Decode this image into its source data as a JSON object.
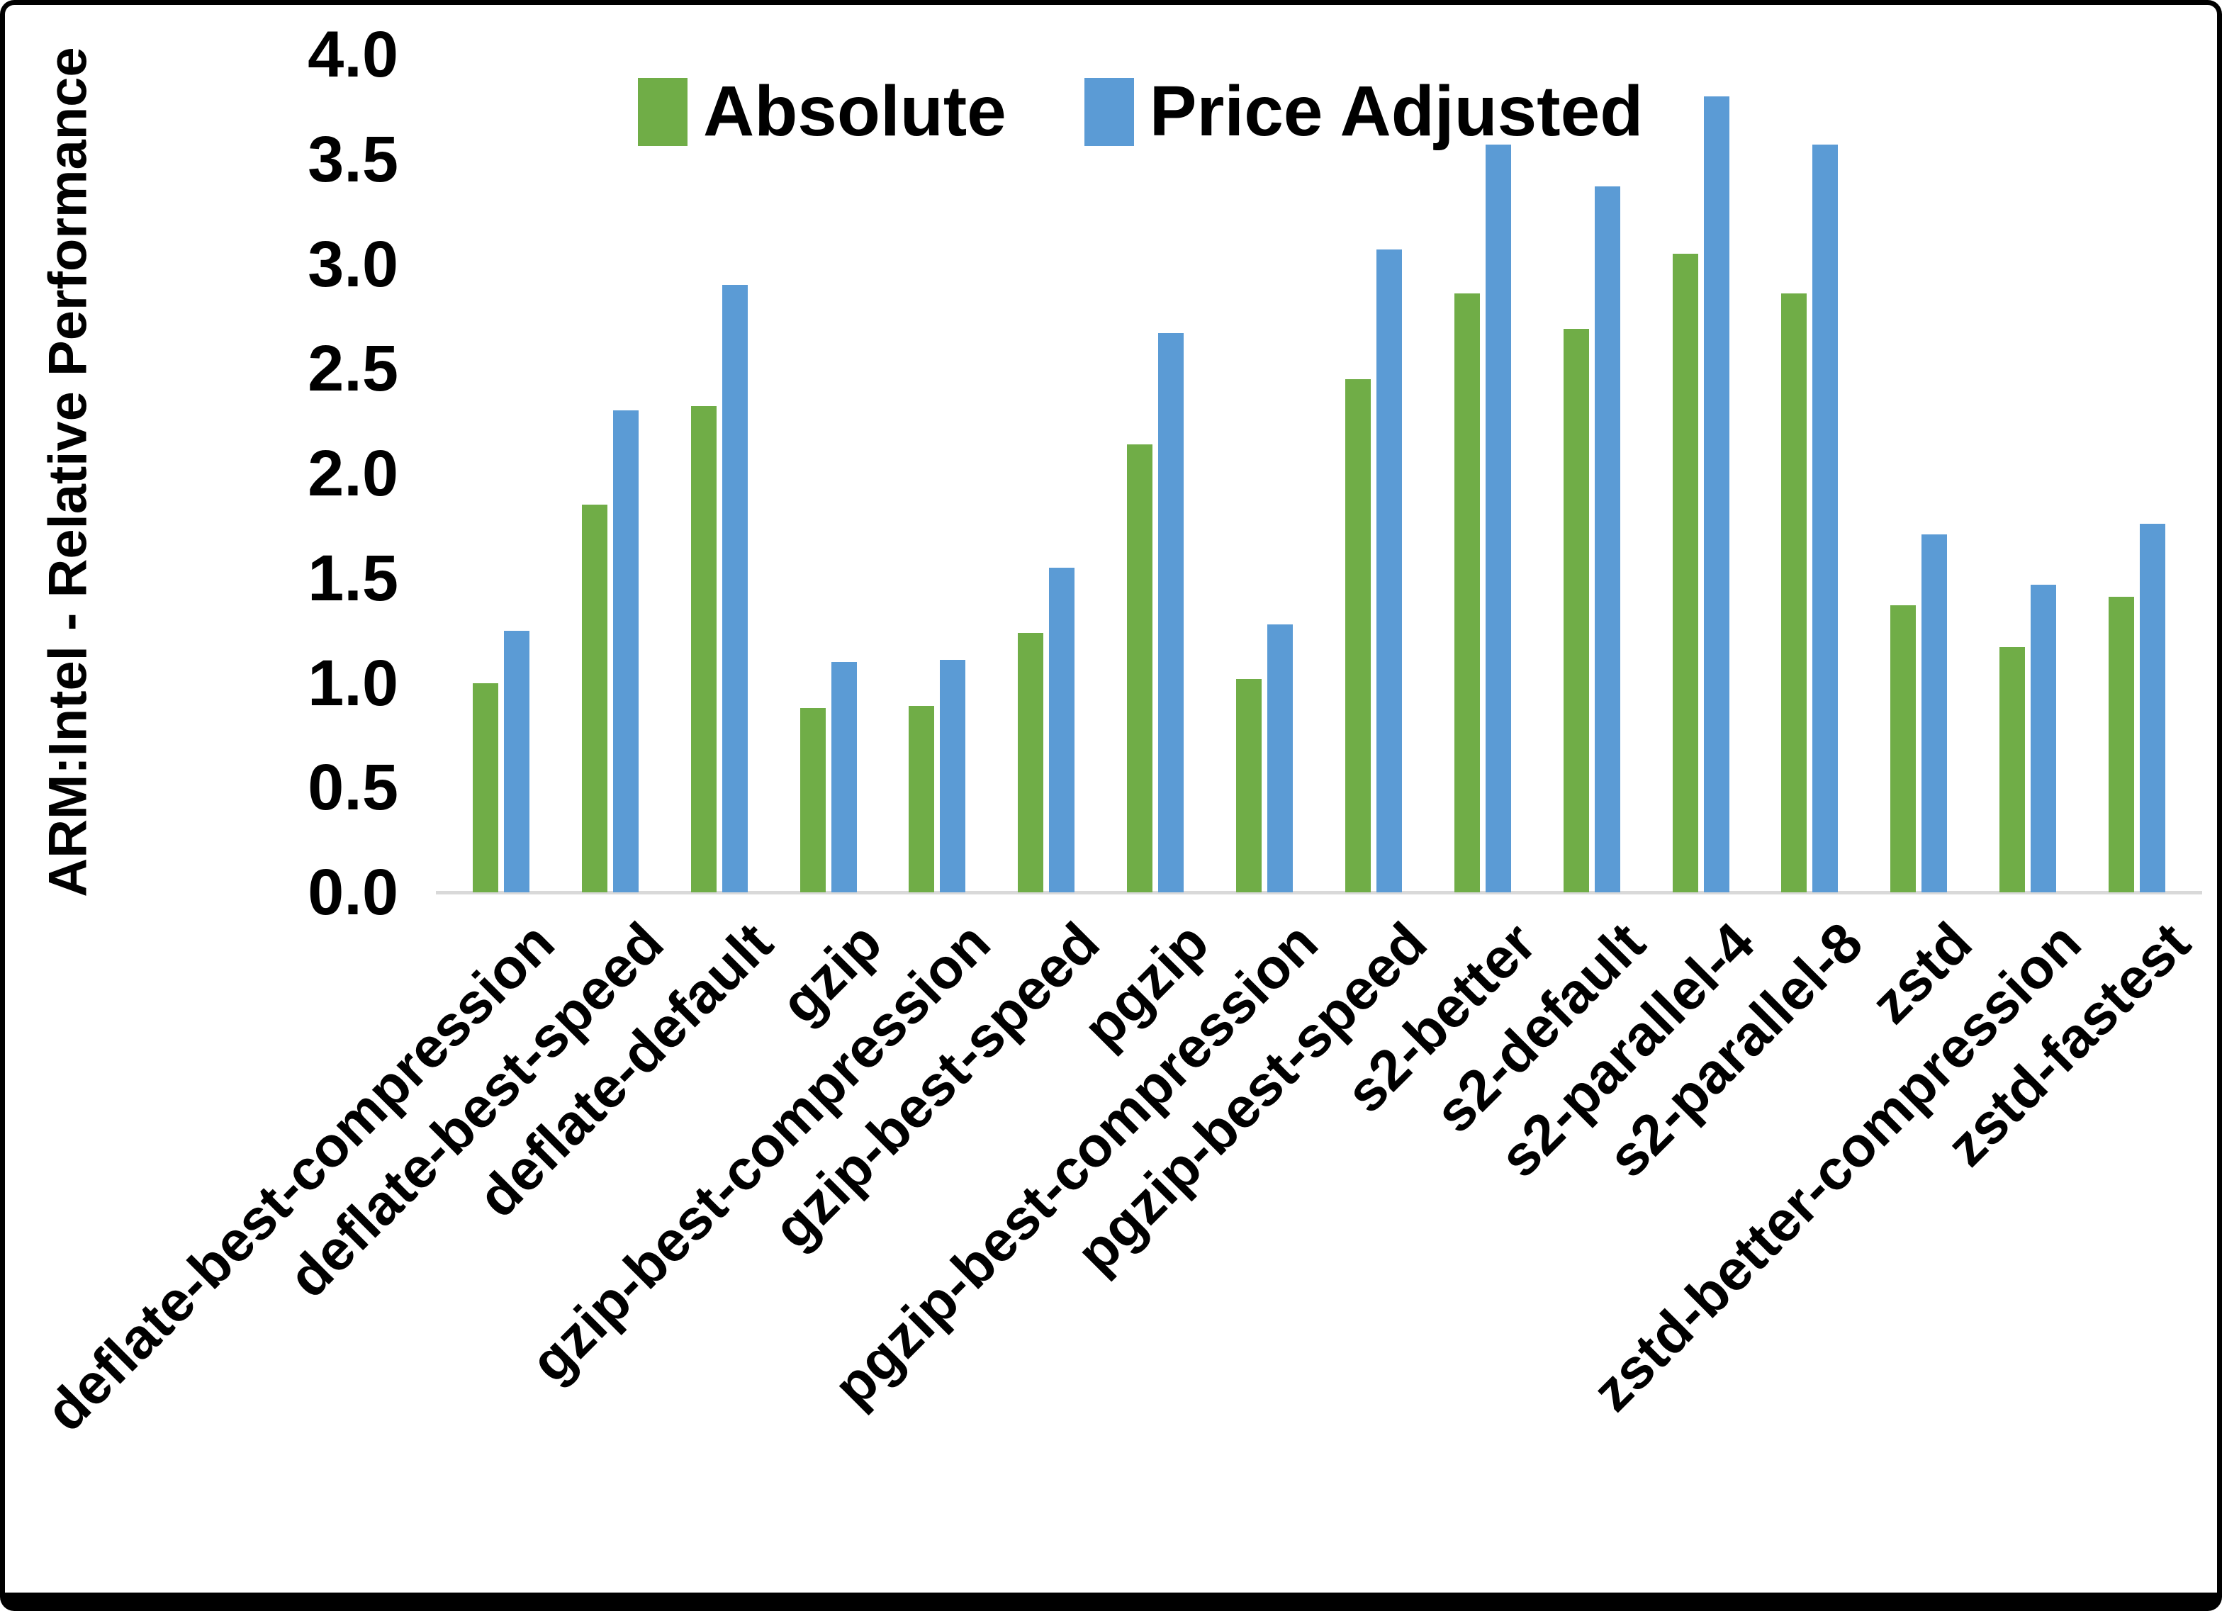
{
  "chart_data": {
    "type": "bar",
    "title": "",
    "xlabel": "",
    "ylabel": "ARM:Intel - Relative Performance",
    "ylim": [
      0.0,
      4.0
    ],
    "ytick_step": 0.5,
    "ytick_labels": [
      "0.0",
      "0.5",
      "1.0",
      "1.5",
      "2.0",
      "2.5",
      "3.0",
      "3.5",
      "4.0"
    ],
    "grid": false,
    "legend_position": "top",
    "categories": [
      "deflate-best-compression",
      "deflate-best-speed",
      "deflate-default",
      "gzip",
      "gzip-best-compression",
      "gzip-best-speed",
      "pgzip",
      "pgzip-best-compression",
      "pgzip-best-speed",
      "s2-better",
      "s2-default",
      "s2-parallel-4",
      "s2-parallel-8",
      "zstd",
      "zstd-better-compression",
      "zstd-fastest"
    ],
    "series": [
      {
        "name": "Absolute",
        "color": "#70AD47",
        "values": [
          1.0,
          1.85,
          2.32,
          0.88,
          0.89,
          1.24,
          2.14,
          1.02,
          2.45,
          2.86,
          2.69,
          3.05,
          2.86,
          1.37,
          1.17,
          1.41
        ]
      },
      {
        "name": "Price Adjusted",
        "color": "#5B9BD5",
        "values": [
          1.25,
          2.3,
          2.9,
          1.1,
          1.11,
          1.55,
          2.67,
          1.28,
          3.07,
          3.57,
          3.37,
          3.8,
          3.57,
          1.71,
          1.47,
          1.76
        ]
      }
    ],
    "colors": {
      "axis_line": "#D9D9D9",
      "text": "#000000",
      "background": "#FFFFFF",
      "frame": "#000000"
    }
  }
}
